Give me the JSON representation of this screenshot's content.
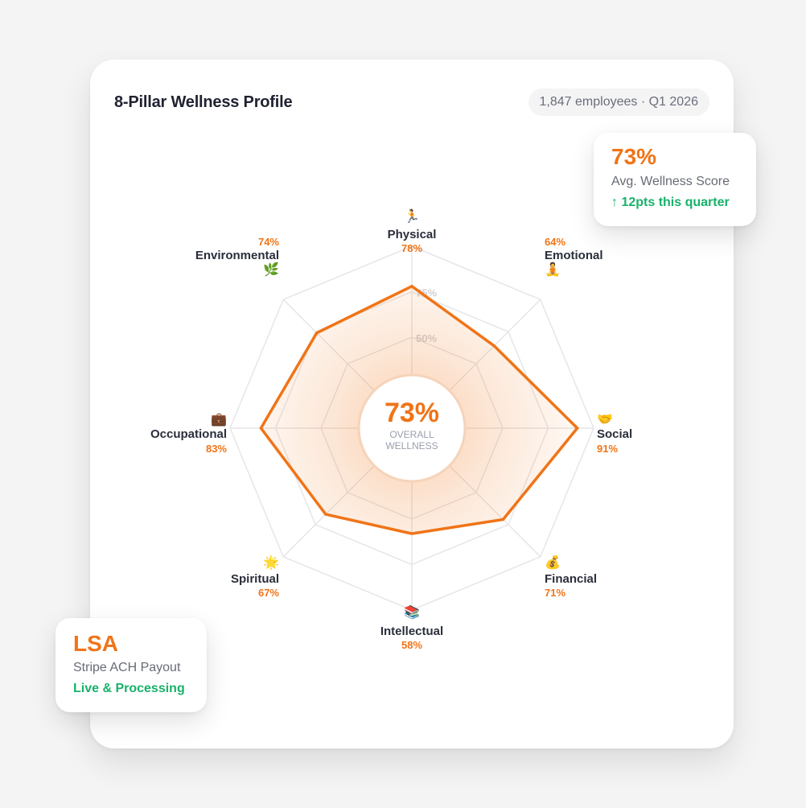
{
  "header": {
    "title": "8-Pillar Wellness Profile",
    "meta": "1,847 employees · Q1 2026"
  },
  "score_card": {
    "value": "73%",
    "label": "Avg. Wellness Score",
    "delta": "↑ 12pts this quarter"
  },
  "lsa_card": {
    "title": "LSA",
    "label": "Stripe ACH Payout",
    "status": "Live & Processing"
  },
  "colors": {
    "accent": "#f07417",
    "green": "#17b26a",
    "grid": "#e6e6e8",
    "text": "#1f2230"
  },
  "chart_data": {
    "type": "radar",
    "center_value": "73%",
    "center_label_line1": "OVERALL",
    "center_label_line2": "WELLNESS",
    "ring_labels": [
      "75%",
      "50%"
    ],
    "range": [
      0,
      100
    ],
    "categories": [
      {
        "name": "Physical",
        "value": 78,
        "label": "78%",
        "icon": "runner-icon",
        "emoji": "🏃"
      },
      {
        "name": "Emotional",
        "value": 64,
        "label": "64%",
        "icon": "meditation-icon",
        "emoji": "🧘"
      },
      {
        "name": "Social",
        "value": 91,
        "label": "91%",
        "icon": "handshake-icon",
        "emoji": "🤝"
      },
      {
        "name": "Financial",
        "value": 71,
        "label": "71%",
        "icon": "money-bag-icon",
        "emoji": "💰"
      },
      {
        "name": "Intellectual",
        "value": 58,
        "label": "58%",
        "icon": "books-icon",
        "emoji": "📚"
      },
      {
        "name": "Spiritual",
        "value": 67,
        "label": "67%",
        "icon": "star-icon",
        "emoji": "🌟"
      },
      {
        "name": "Occupational",
        "value": 83,
        "label": "83%",
        "icon": "briefcase-icon",
        "emoji": "💼"
      },
      {
        "name": "Environmental",
        "value": 74,
        "label": "74%",
        "icon": "herb-icon",
        "emoji": "🌿"
      }
    ]
  }
}
